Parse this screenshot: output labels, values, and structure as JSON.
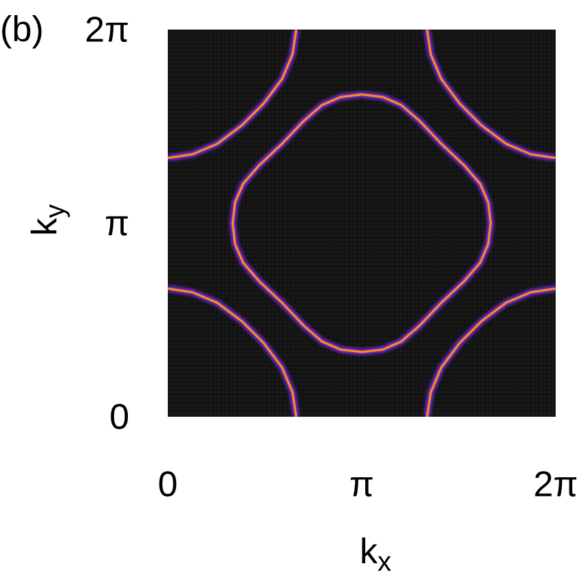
{
  "chart_data": {
    "type": "contour",
    "panel_label": "(b)",
    "xlabel": "kx",
    "ylabel": "ky",
    "xlim": [
      0,
      6.28319
    ],
    "ylim": [
      0,
      6.28319
    ],
    "xticks": [
      0,
      {
        "value": 3.14159,
        "label": "π"
      },
      {
        "value": 6.28319,
        "label": "2π"
      }
    ],
    "yticks": [
      0,
      {
        "value": 3.14159,
        "label": "π"
      },
      {
        "value": 6.28319,
        "label": "2π"
      }
    ],
    "background": "#121212",
    "color": "#ff8a1c",
    "glow_color": "#7b2ff0",
    "series": [
      {
        "x": [
          3.14,
          2.8,
          2.5,
          2.2,
          1.85,
          1.48,
          1.22,
          1.09,
          1.05,
          1.09,
          1.22,
          1.48,
          1.85,
          2.2,
          2.5,
          2.8,
          3.14,
          3.48,
          3.78,
          4.08,
          4.43,
          4.8,
          5.06,
          5.19,
          5.23,
          5.19,
          5.06,
          4.8,
          4.43,
          4.08,
          3.78,
          3.48,
          3.14
        ],
        "y": [
          1.05,
          1.09,
          1.22,
          1.48,
          1.85,
          2.2,
          2.5,
          2.8,
          3.14,
          3.48,
          3.78,
          4.08,
          4.43,
          4.8,
          5.06,
          5.19,
          5.23,
          5.19,
          5.06,
          4.8,
          4.43,
          4.08,
          3.78,
          3.48,
          3.14,
          2.8,
          2.5,
          2.2,
          1.85,
          1.48,
          1.22,
          1.09,
          1.05
        ]
      },
      {
        "x": [
          0,
          0.4,
          0.8,
          1.2,
          1.55,
          1.85,
          2.02,
          2.08
        ],
        "y": [
          2.08,
          2.02,
          1.85,
          1.55,
          1.2,
          0.8,
          0.4,
          0
        ]
      },
      {
        "x": [
          0,
          0.4,
          0.8,
          1.2,
          1.55,
          1.85,
          2.02,
          2.08
        ],
        "y": [
          4.2,
          4.26,
          4.43,
          4.73,
          5.08,
          5.48,
          5.88,
          6.28
        ]
      },
      {
        "x": [
          6.28,
          5.88,
          5.48,
          5.08,
          4.73,
          4.43,
          4.26,
          4.2
        ],
        "y": [
          2.08,
          2.02,
          1.85,
          1.55,
          1.2,
          0.8,
          0.4,
          0
        ]
      },
      {
        "x": [
          6.28,
          5.88,
          5.48,
          5.08,
          4.73,
          4.43,
          4.26,
          4.2
        ],
        "y": [
          4.2,
          4.26,
          4.43,
          4.73,
          5.08,
          5.48,
          5.88,
          6.28
        ]
      }
    ]
  }
}
